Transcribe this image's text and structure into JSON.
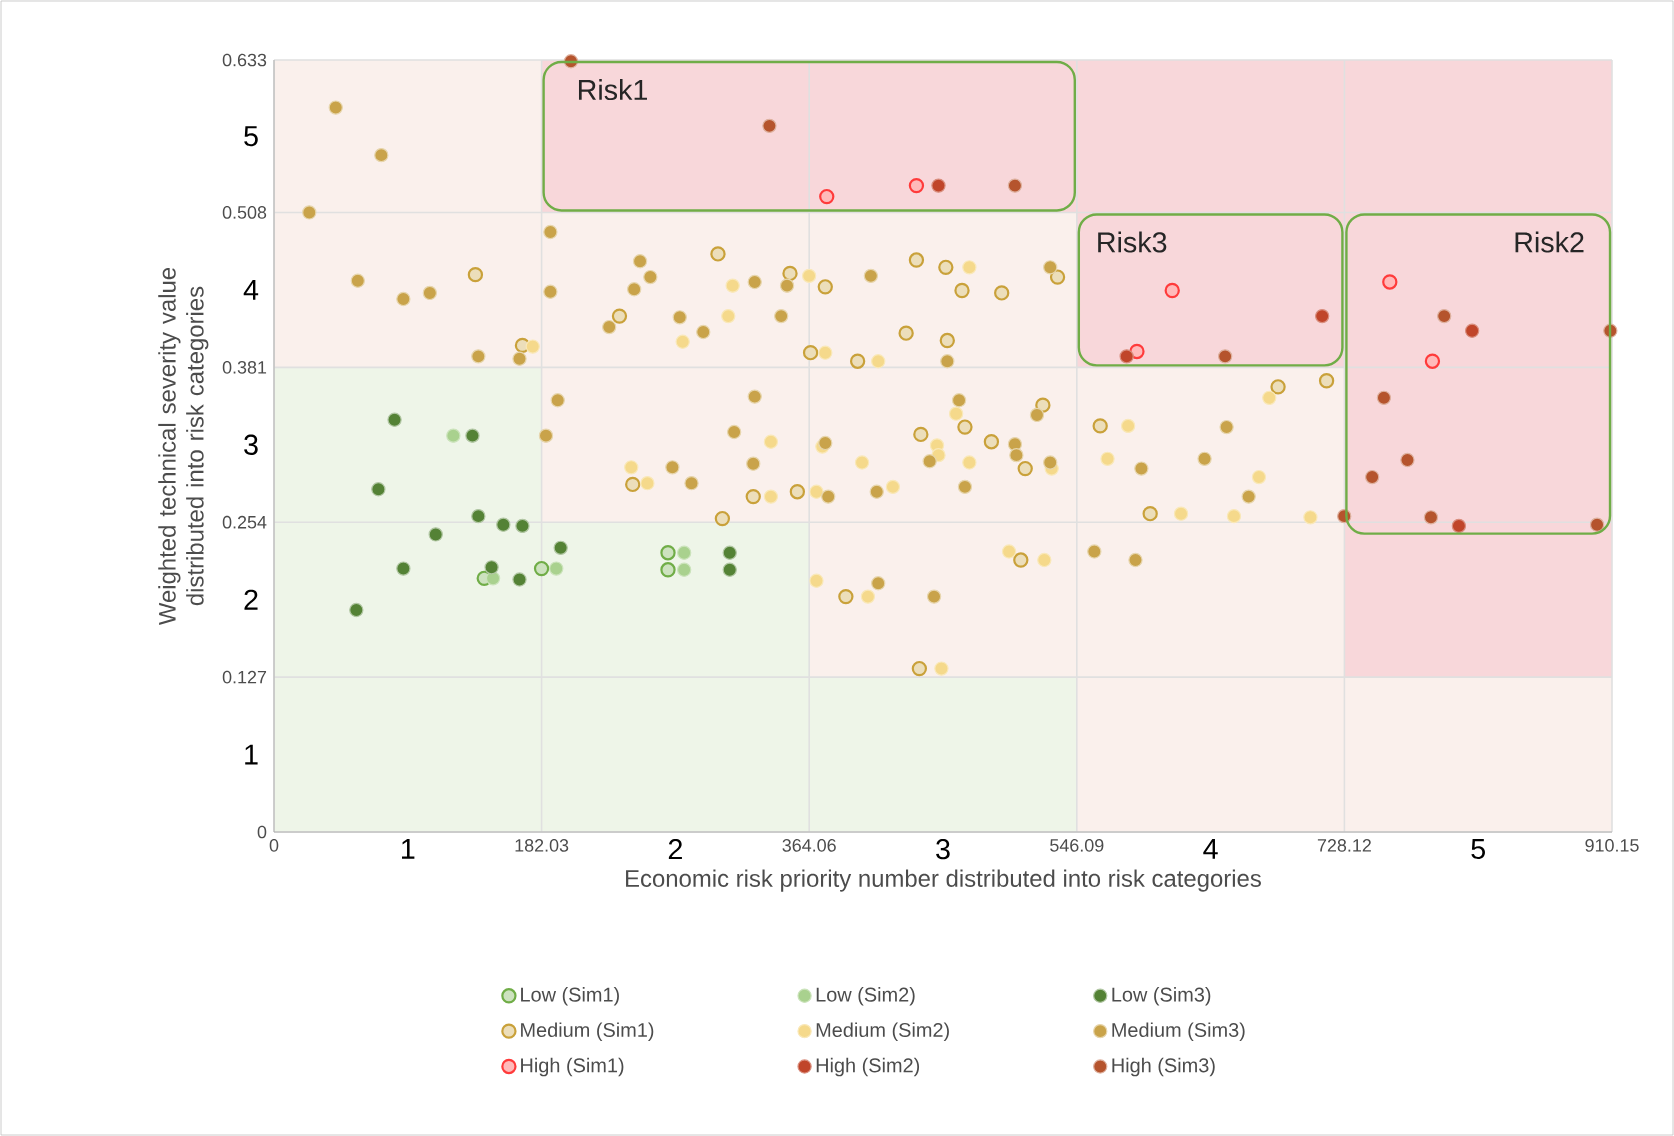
{
  "chart_data": {
    "type": "scatter",
    "xlabel": "Economic risk priority number distributed into risk categories",
    "ylabel": "Weighted technical severity value distributed into risk categories",
    "xlim": [
      0,
      910.15
    ],
    "ylim": [
      0,
      0.633
    ],
    "xticks": [
      0,
      182.03,
      364.06,
      546.09,
      728.12,
      910.15
    ],
    "yticks": [
      0,
      0.127,
      0.254,
      0.381,
      0.508,
      0.633
    ],
    "grid": true,
    "legend": "bottom",
    "annotations": [
      "1",
      "2",
      "3",
      "4",
      "5",
      "1",
      "2",
      "3",
      "4",
      "5",
      "Risk1",
      "Risk3",
      "Risk2"
    ],
    "stacked": true,
    "series": [
      {
        "type": "area",
        "marker": "none",
        "color": "#eef5e8",
        "x": [
          0,
          182.03,
          182.03,
          364.06,
          364.06,
          546.09,
          546.09,
          728.12,
          728.12,
          910.15
        ],
        "values": [
          0.381,
          0.381,
          0.254,
          0.254,
          0.127,
          0.127,
          0,
          0,
          0,
          0
        ]
      },
      {
        "type": "area",
        "marker": "none",
        "color": "#faf0ec",
        "x": [
          0,
          182.03,
          182.03,
          364.06,
          364.06,
          546.09,
          546.09,
          728.12,
          728.12,
          910.15
        ],
        "values": [
          0.252,
          0.252,
          0.254,
          0.254,
          0.381,
          0.381,
          0.381,
          0.381,
          0.127,
          0.127
        ]
      },
      {
        "type": "area",
        "marker": "none",
        "color": "#f8d7da",
        "x": [
          0,
          182.03,
          182.03,
          364.06,
          364.06,
          546.09,
          546.09,
          728.12,
          728.12,
          910.15
        ],
        "values": [
          0,
          0,
          0.125,
          0.125,
          0.125,
          0.125,
          0.252,
          0.252,
          0.506,
          0.506
        ]
      },
      {
        "name": "Low (Sim1)",
        "marker": "circle",
        "color": "#70ad47",
        "x": [
          143,
          182,
          268,
          268
        ],
        "values": [
          0.208,
          0.216,
          0.229,
          0.215
        ]
      },
      {
        "name": "Low (Sim2)",
        "marker": "circle",
        "color": "#a9d18e",
        "x": [
          122,
          149,
          192,
          279,
          279
        ],
        "values": [
          0.325,
          0.208,
          0.216,
          0.229,
          0.215
        ]
      },
      {
        "name": "Low (Sim3)",
        "marker": "circle",
        "color": "#548235",
        "x": [
          82,
          135,
          71,
          139,
          156,
          169,
          110,
          88,
          148,
          167,
          195,
          310,
          310,
          56
        ],
        "values": [
          0.338,
          0.325,
          0.281,
          0.259,
          0.252,
          0.251,
          0.244,
          0.216,
          0.217,
          0.207,
          0.233,
          0.229,
          0.215,
          0.182
        ]
      },
      {
        "name": "Medium (Sim1)",
        "marker": "circle",
        "color": "#c9a13a",
        "x": [
          137,
          169,
          302,
          235,
          351,
          365,
          244,
          326,
          356,
          305,
          375,
          437,
          457,
          468,
          495,
          533,
          430,
          458,
          397,
          683,
          716,
          440,
          470,
          488,
          511,
          523,
          562,
          596,
          508,
          389,
          439
        ],
        "values": [
          0.457,
          0.399,
          0.474,
          0.423,
          0.458,
          0.393,
          0.285,
          0.275,
          0.279,
          0.257,
          0.447,
          0.469,
          0.463,
          0.444,
          0.442,
          0.455,
          0.409,
          0.403,
          0.386,
          0.365,
          0.37,
          0.326,
          0.332,
          0.32,
          0.298,
          0.35,
          0.333,
          0.261,
          0.223,
          0.193,
          0.134
        ]
      },
      {
        "name": "Medium (Sim2)",
        "marker": "circle",
        "color": "#f5d98b",
        "x": [
          176,
          278,
          309,
          312,
          364,
          338,
          243,
          254,
          338,
          369,
          473,
          375,
          411,
          677,
          369,
          373,
          400,
          421,
          451,
          452,
          473,
          464,
          529,
          581,
          567,
          670,
          617,
          653,
          705,
          500,
          524,
          404,
          454
        ],
        "values": [
          0.398,
          0.402,
          0.423,
          0.448,
          0.456,
          0.32,
          0.299,
          0.286,
          0.275,
          0.206,
          0.463,
          0.393,
          0.386,
          0.356,
          0.279,
          0.316,
          0.303,
          0.283,
          0.317,
          0.309,
          0.303,
          0.343,
          0.298,
          0.333,
          0.306,
          0.291,
          0.261,
          0.259,
          0.258,
          0.23,
          0.223,
          0.193,
          0.134
        ]
      },
      {
        "name": "Medium (Sim3)",
        "marker": "circle",
        "color": "#c9a34a",
        "x": [
          42,
          73,
          24,
          188,
          57,
          88,
          106,
          139,
          167,
          249,
          256,
          245,
          188,
          228,
          276,
          292,
          327,
          345,
          349,
          193,
          327,
          185,
          313,
          326,
          271,
          284,
          406,
          528,
          458,
          377,
          375,
          410,
          446,
          470,
          466,
          504,
          505,
          528,
          519,
          590,
          633,
          648,
          663,
          558,
          586,
          411,
          449
        ],
        "values": [
          0.594,
          0.555,
          0.508,
          0.492,
          0.452,
          0.437,
          0.442,
          0.39,
          0.388,
          0.468,
          0.455,
          0.445,
          0.443,
          0.414,
          0.422,
          0.41,
          0.451,
          0.423,
          0.448,
          0.354,
          0.357,
          0.325,
          0.328,
          0.302,
          0.299,
          0.286,
          0.456,
          0.463,
          0.386,
          0.275,
          0.319,
          0.279,
          0.304,
          0.283,
          0.354,
          0.318,
          0.309,
          0.303,
          0.342,
          0.298,
          0.306,
          0.332,
          0.275,
          0.23,
          0.223,
          0.204,
          0.193
        ]
      },
      {
        "name": "High (Sim1)",
        "marker": "circle",
        "color": "#ff3b3b",
        "x": [
          376,
          437,
          611,
          587,
          759,
          788
        ],
        "values": [
          0.521,
          0.53,
          0.444,
          0.394,
          0.451,
          0.386
        ]
      },
      {
        "name": "High (Sim2)",
        "marker": "circle",
        "color": "#c0452a",
        "x": [
          452,
          713,
          580,
          815,
          806
        ],
        "values": [
          0.53,
          0.423,
          0.39,
          0.411,
          0.251
        ]
      },
      {
        "name": "High (Sim3)",
        "marker": "circle",
        "color": "#b5542d",
        "x": [
          202,
          337,
          504,
          647,
          796,
          909,
          755,
          771,
          747,
          728,
          787,
          900
        ],
        "values": [
          0.632,
          0.579,
          0.53,
          0.39,
          0.423,
          0.411,
          0.356,
          0.305,
          0.291,
          0.259,
          0.258,
          0.252
        ]
      }
    ]
  }
}
